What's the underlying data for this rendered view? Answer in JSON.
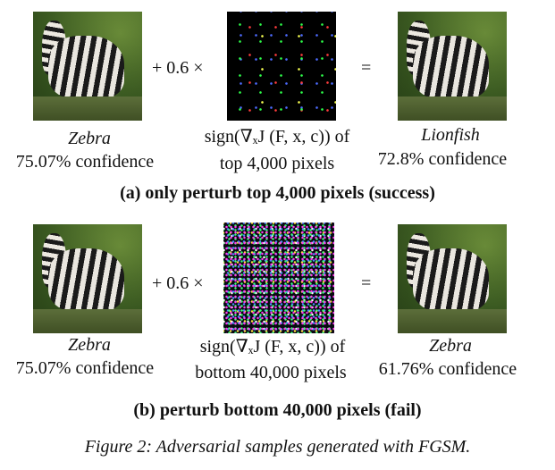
{
  "row_a": {
    "operator_text": "+ 0.6 ×",
    "equals": "=",
    "left_label": "Zebra",
    "left_conf": "75.07% confidence",
    "mid_line1": "sign(∇ₓJ (F, x, c)) of",
    "mid_line2": "top 4,000 pixels",
    "right_label": "Lionfish",
    "right_conf": "72.8% confidence",
    "caption": "(a) only perturb top 4,000 pixels (success)"
  },
  "row_b": {
    "operator_text": "+ 0.6 ×",
    "equals": "=",
    "left_label": "Zebra",
    "left_conf": "75.07% confidence",
    "mid_line1": "sign(∇ₓJ (F, x, c)) of",
    "mid_line2": "bottom 40,000  pixels",
    "right_label": "Zebra",
    "right_conf": "61.76% confidence",
    "caption": "(b) perturb bottom 40,000 pixels (fail)"
  },
  "figure_caption": "Figure 2: Adversarial samples generated with FGSM."
}
